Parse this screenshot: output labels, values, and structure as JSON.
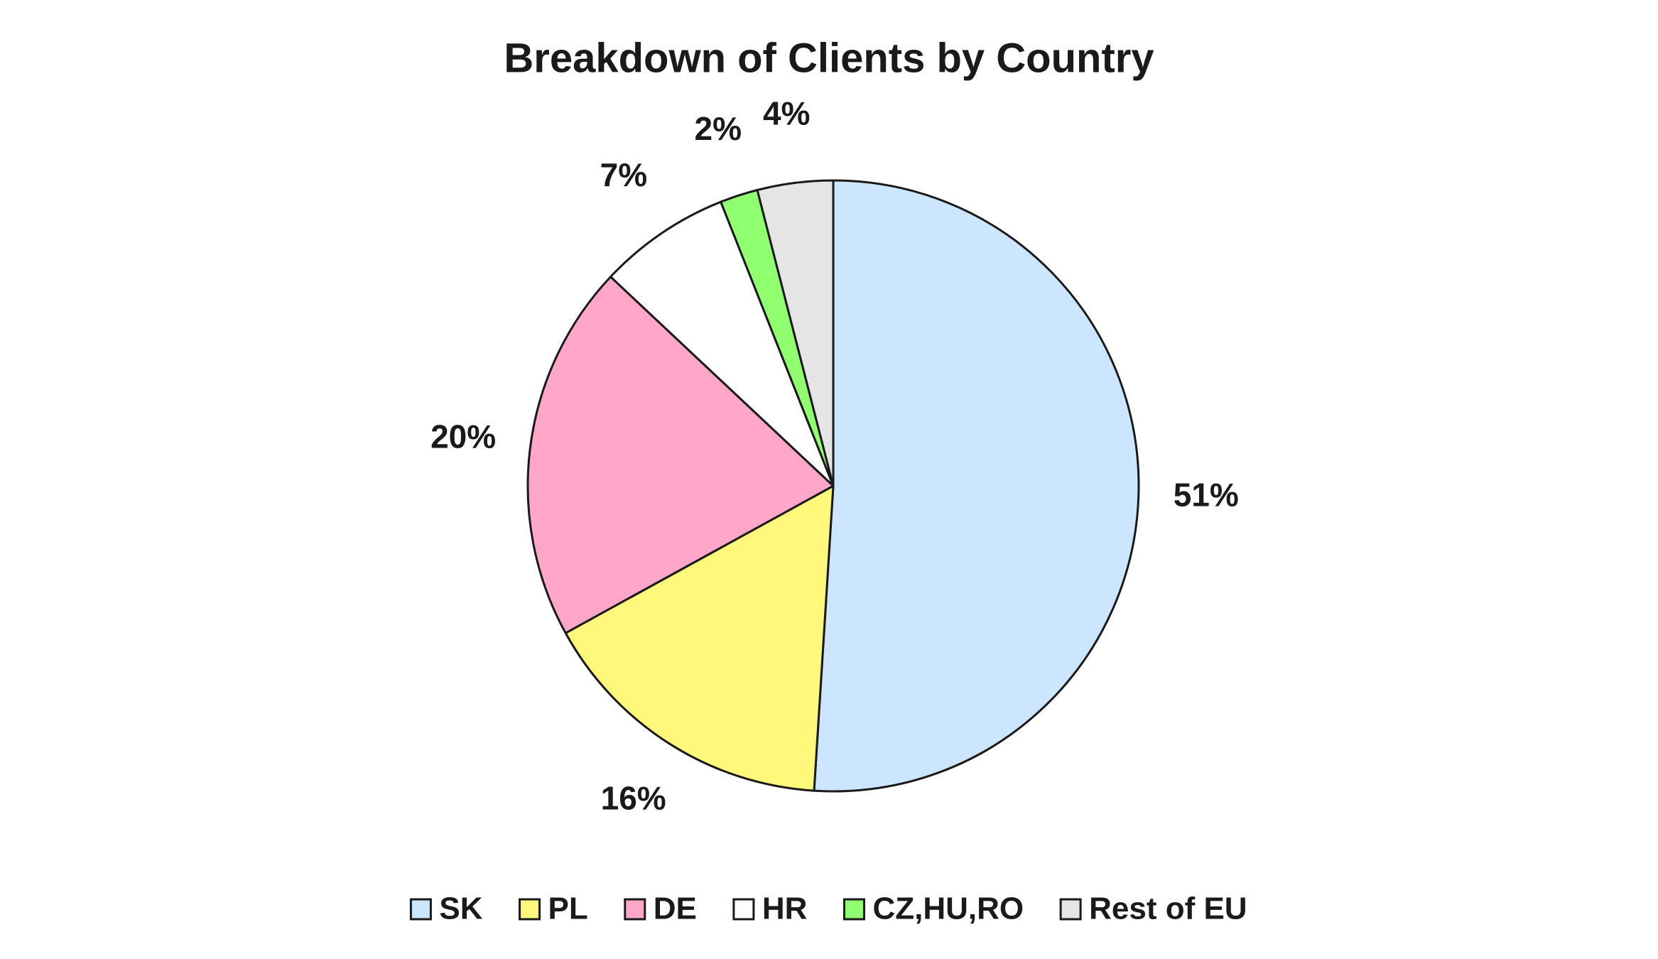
{
  "chart_data": {
    "type": "pie",
    "title": "Breakdown of Clients by Country",
    "categories": [
      "SK",
      "PL",
      "DE",
      "HR",
      "CZ,HU,RO",
      "Rest of EU"
    ],
    "values": [
      51,
      16,
      20,
      7,
      2,
      4
    ],
    "value_labels": [
      "51%",
      "16%",
      "20%",
      "7%",
      "2%",
      "4%"
    ],
    "colors": [
      "#cce6ff",
      "#fff87a",
      "#ffa6c9",
      "#ffffff",
      "#90ff70",
      "#e5e5e5"
    ],
    "legend": "bottom"
  }
}
